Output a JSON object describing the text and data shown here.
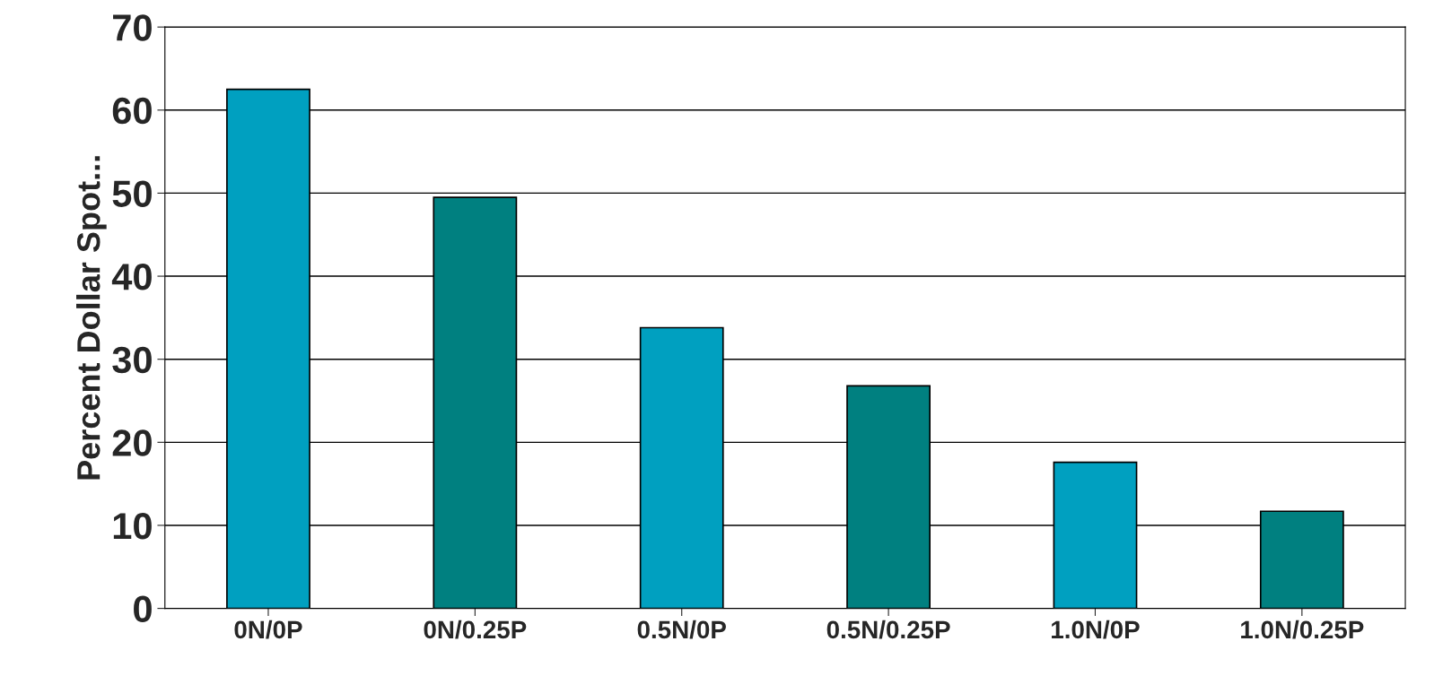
{
  "chart_data": {
    "type": "bar",
    "ylabel": "Percent Dollar Spot...",
    "categories": [
      "0N/0P",
      "0N/0.25P",
      "0.5N/0P",
      "0.5N/0.25P",
      "1.0N/0P",
      "1.0N/0.25P"
    ],
    "values": [
      62.5,
      49.5,
      33.8,
      26.8,
      17.6,
      11.7
    ],
    "colors": [
      "#00a0c0",
      "#008080",
      "#00a0c0",
      "#008080",
      "#00a0c0",
      "#008080"
    ],
    "ylim": [
      0,
      70
    ],
    "yticks": [
      0,
      10,
      20,
      30,
      40,
      50,
      60,
      70
    ],
    "grid": "y"
  }
}
